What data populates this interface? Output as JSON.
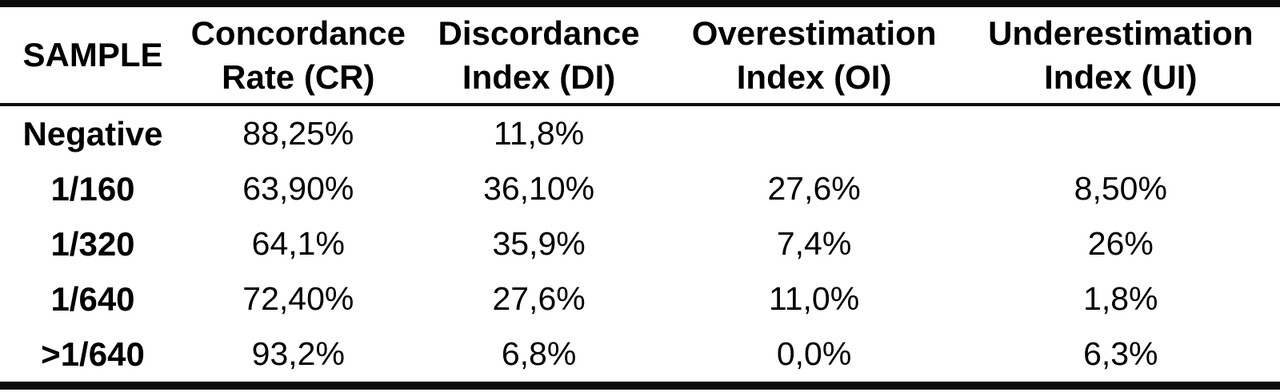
{
  "table": {
    "columns": [
      {
        "label": "SAMPLE"
      },
      {
        "line1": "Concordance",
        "line2": "Rate (CR)"
      },
      {
        "line1": "Discordance",
        "line2": "Index (DI)"
      },
      {
        "line1": "Overestimation",
        "line2": "Index (OI)"
      },
      {
        "line1": "Underestimation",
        "line2": "Index (UI)"
      }
    ],
    "rows": [
      {
        "sample": "Negative",
        "cr": "88,25%",
        "di": "11,8%",
        "oi": "",
        "ui": ""
      },
      {
        "sample": "1/160",
        "cr": "63,90%",
        "di": "36,10%",
        "oi": "27,6%",
        "ui": "8,50%"
      },
      {
        "sample": "1/320",
        "cr": "64,1%",
        "di": "35,9%",
        "oi": "7,4%",
        "ui": "26%"
      },
      {
        "sample": "1/640",
        "cr": "72,40%",
        "di": "27,6%",
        "oi": "11,0%",
        "ui": "1,8%"
      },
      {
        "sample": ">1/640",
        "cr": "93,2%",
        "di": "6,8%",
        "oi": "0,0%",
        "ui": "6,3%"
      }
    ]
  },
  "colors": {
    "text": "#000000",
    "background": "#ffffff",
    "rule": "#0d0d0d"
  },
  "chart_data": {
    "type": "table",
    "title": "",
    "categories": [
      "Negative",
      "1/160",
      "1/320",
      "1/640",
      ">1/640"
    ],
    "series": [
      {
        "name": "Concordance Rate (CR)",
        "values": [
          88.25,
          63.9,
          64.1,
          72.4,
          93.2
        ]
      },
      {
        "name": "Discordance Index (DI)",
        "values": [
          11.8,
          36.1,
          35.9,
          27.6,
          6.8
        ]
      },
      {
        "name": "Overestimation Index (OI)",
        "values": [
          null,
          27.6,
          7.4,
          11.0,
          0.0
        ]
      },
      {
        "name": "Underestimation Index (UI)",
        "values": [
          null,
          8.5,
          26,
          1.8,
          6.3
        ]
      }
    ]
  }
}
